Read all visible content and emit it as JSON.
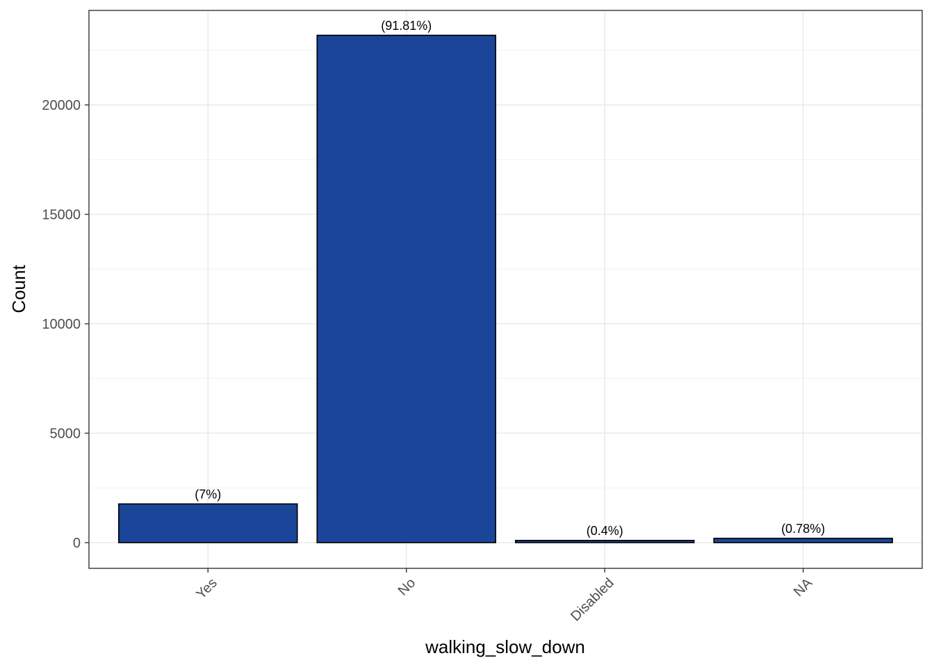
{
  "chart_data": {
    "type": "bar",
    "x_label": "walking_slow_down",
    "y_label": "Count",
    "categories": [
      "Yes",
      "No",
      "Disabled",
      "NA"
    ],
    "values": [
      1768,
      23182,
      101,
      197
    ],
    "annotations": [
      "(7%)",
      "(91.81%)",
      "(0.4%)",
      "(0.78%)"
    ],
    "color": "#1a4599",
    "ylim": [
      -1175,
      24317
    ],
    "yticks": [
      0,
      5000,
      10000,
      15000,
      20000
    ],
    "grid": true
  }
}
